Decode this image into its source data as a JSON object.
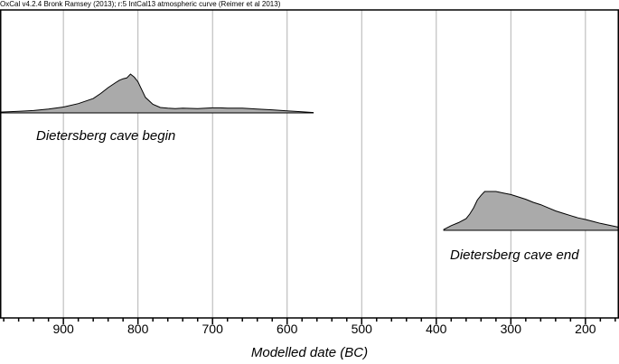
{
  "header": {
    "text": "OxCal v4.2.4 Bronk Ramsey (2013); r:5 IntCal13 atmospheric curve (Reimer et al 2013)"
  },
  "chart_data": {
    "type": "area",
    "title": "",
    "xlabel": "Modelled date (BC)",
    "ylabel": "",
    "xlim": [
      985,
      155
    ],
    "xticks": [
      900,
      800,
      700,
      600,
      500,
      400,
      300,
      200
    ],
    "grid": true,
    "series": [
      {
        "name": "Dietersberg cave begin",
        "x": [
          985,
          960,
          940,
          920,
          900,
          880,
          860,
          850,
          840,
          830,
          825,
          820,
          815,
          810,
          805,
          800,
          795,
          790,
          780,
          770,
          760,
          750,
          740,
          720,
          700,
          690,
          680,
          660,
          640,
          620,
          600,
          580,
          565
        ],
        "y": [
          0.02,
          0.04,
          0.06,
          0.1,
          0.15,
          0.24,
          0.37,
          0.5,
          0.65,
          0.78,
          0.84,
          0.88,
          0.9,
          1.0,
          0.92,
          0.8,
          0.6,
          0.4,
          0.22,
          0.14,
          0.12,
          0.11,
          0.12,
          0.11,
          0.13,
          0.13,
          0.12,
          0.12,
          0.1,
          0.08,
          0.05,
          0.03,
          0.01
        ]
      },
      {
        "name": "Dietersberg cave end",
        "x": [
          390,
          380,
          370,
          360,
          355,
          350,
          345,
          340,
          335,
          330,
          320,
          310,
          300,
          290,
          280,
          270,
          260,
          250,
          240,
          230,
          220,
          210,
          200,
          190,
          180,
          170,
          160,
          155
        ],
        "y": [
          0.02,
          0.12,
          0.2,
          0.3,
          0.42,
          0.58,
          0.78,
          0.9,
          1.0,
          1.0,
          1.0,
          0.96,
          0.92,
          0.86,
          0.8,
          0.72,
          0.66,
          0.58,
          0.5,
          0.44,
          0.38,
          0.32,
          0.28,
          0.23,
          0.18,
          0.14,
          0.1,
          0.08
        ]
      }
    ],
    "colors": {
      "fill": "#aaaaaa",
      "stroke": "#000000",
      "grid": "#b3b3b3"
    }
  }
}
